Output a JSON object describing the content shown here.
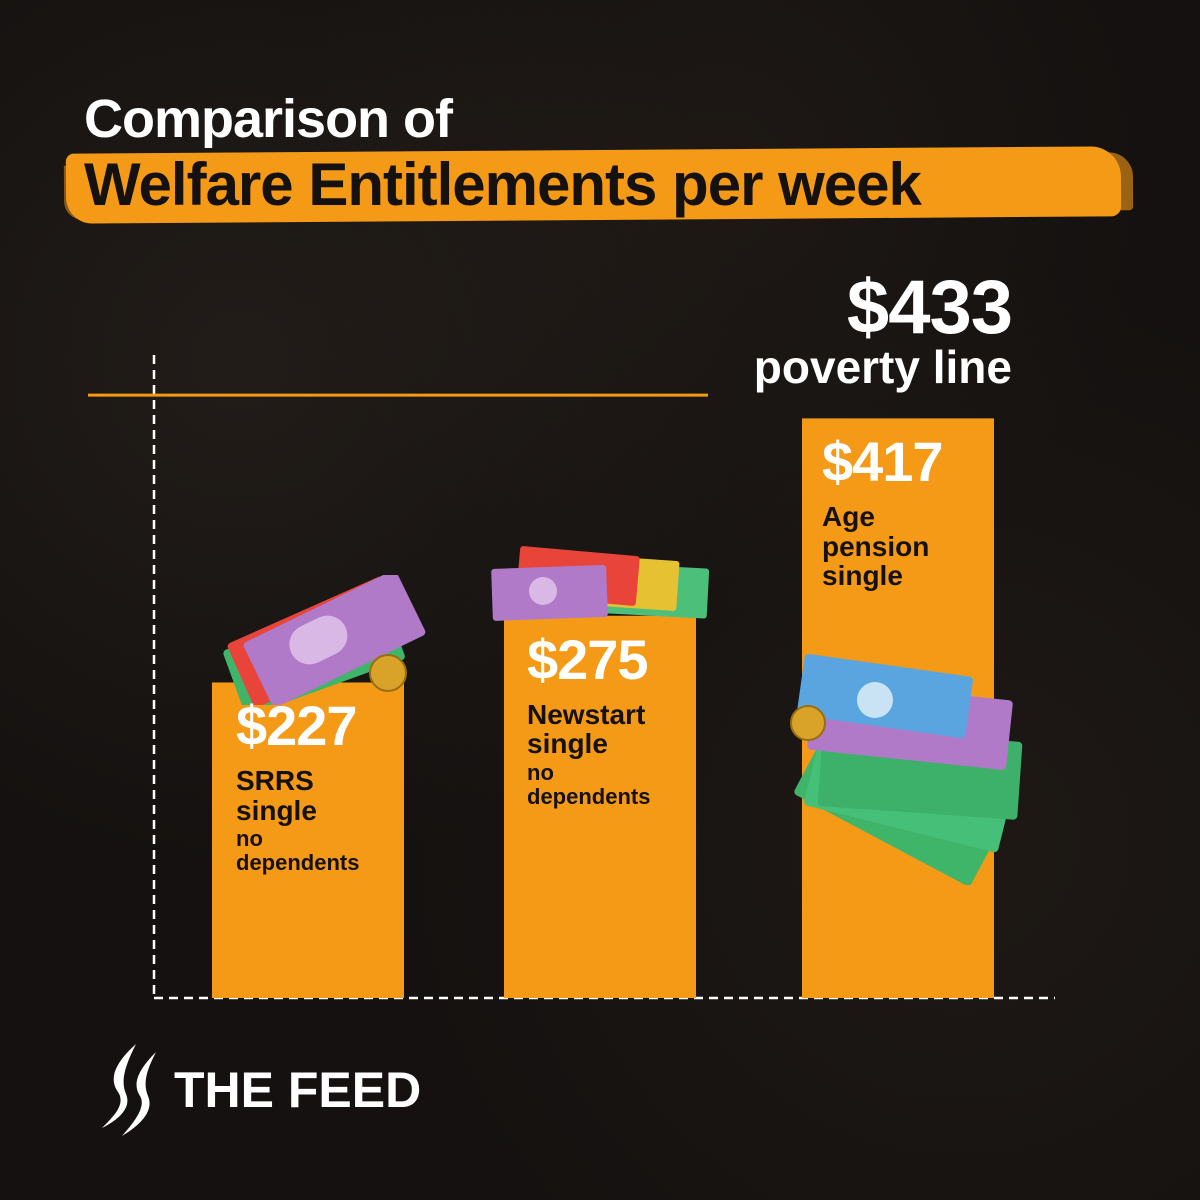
{
  "title": {
    "line1": "Comparison of",
    "line2": "Welfare Entitlements per week"
  },
  "colors": {
    "bar": "#f59a17",
    "background": "#141110",
    "value_text": "#ffffff",
    "label_text": "#141110",
    "poverty_line": "#f59a17"
  },
  "chart_data": {
    "type": "bar",
    "categories": [
      "SRRS single no dependents",
      "Newstart single no dependents",
      "Age pension single"
    ],
    "values": [
      227,
      275,
      417
    ],
    "value_labels": [
      "$227",
      "$275",
      "$417"
    ],
    "category_lines": [
      {
        "main": "SRRS single",
        "sub": "no dependents"
      },
      {
        "main": "Newstart single",
        "sub": "no dependents"
      },
      {
        "main": "Age pension single",
        "sub": ""
      }
    ],
    "ylim": [
      0,
      480
    ],
    "reference_line": {
      "value": 433,
      "value_label": "$433",
      "label": "poverty line"
    },
    "title": "Comparison of Welfare Entitlements per week",
    "xlabel": "",
    "ylabel": "",
    "grid": false,
    "legend": "none"
  },
  "money_icons": [
    "banknotes-icon",
    "coin-icon"
  ],
  "brand": {
    "logo_icon": "sbs-logo-icon",
    "name": "THE FEED"
  }
}
